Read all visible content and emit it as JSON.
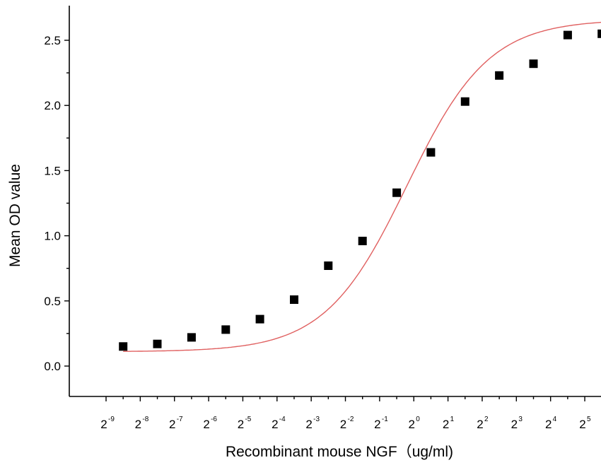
{
  "chart_data": {
    "type": "scatter",
    "title": "",
    "xlabel": "Recombinant mouse NGF（ug/ml)",
    "ylabel": "Mean OD value",
    "x_scale": "log2",
    "x_tick_base": "2",
    "x_tick_exponents": [
      "-9",
      "-8",
      "-7",
      "-6",
      "-5",
      "-4",
      "-3",
      "-2",
      "-1",
      "0",
      "1",
      "2",
      "3",
      "4",
      "5"
    ],
    "y_ticks": [
      "0.0",
      "0.5",
      "1.0",
      "1.5",
      "2.0",
      "2.5"
    ],
    "ylim": [
      -0.25,
      2.75
    ],
    "xlim_log2": [
      -9.6,
      5.6
    ],
    "grid": false,
    "series": [
      {
        "values_x_log2": [
          -8.5,
          -7.5,
          -6.5,
          -5.5,
          -4.5,
          -3.5,
          -2.5,
          -1.5,
          -0.5,
          0.5,
          1.5,
          2.5,
          3.5,
          4.5,
          5.5
        ],
        "values_y": [
          0.15,
          0.17,
          0.22,
          0.28,
          0.36,
          0.51,
          0.77,
          0.96,
          1.33,
          1.64,
          2.03,
          2.23,
          2.32,
          2.54,
          2.55
        ],
        "marker": "square",
        "color": "#000000"
      }
    ],
    "fit_curve": {
      "model": "logistic",
      "color": "#e06060"
    }
  }
}
